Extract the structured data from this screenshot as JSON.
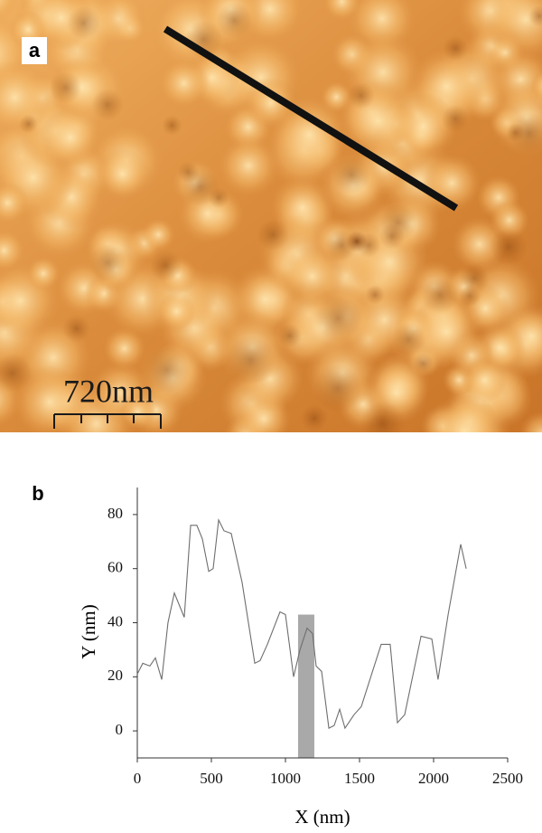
{
  "image_panel": {
    "label": "a",
    "scale_bar": "720nm"
  },
  "chart_data": {
    "type": "line",
    "panel_label": "b",
    "x_label": "X (nm)",
    "y_label": "Y (nm)",
    "x": [
      0,
      37,
      85,
      122,
      165,
      207,
      250,
      317,
      360,
      402,
      439,
      482,
      512,
      549,
      585,
      634,
      707,
      793,
      829,
      878,
      963,
      1000,
      1055,
      1098,
      1146,
      1183,
      1207,
      1244,
      1293,
      1329,
      1366,
      1402,
      1463,
      1512,
      1646,
      1707,
      1756,
      1805,
      1915,
      1988,
      2030,
      2098,
      2183,
      2220
    ],
    "series": [
      {
        "color": "#6e6e6e",
        "values": [
          21,
          25,
          24,
          27,
          19,
          40,
          51,
          42,
          76,
          76,
          71,
          59,
          60,
          78,
          74,
          73,
          55,
          25,
          26,
          32,
          44,
          43,
          20,
          30,
          38,
          36,
          24,
          22,
          1,
          2,
          8,
          1,
          6,
          9,
          32,
          32,
          3,
          6,
          35,
          34,
          19,
          43,
          69,
          60
        ]
      }
    ],
    "highlight": {
      "x": [
        1085,
        1195
      ],
      "top": 43,
      "color": "#a9a9a9"
    },
    "xlim": [
      0,
      2500
    ],
    "ylim": [
      -10,
      90
    ],
    "xticks": [
      0,
      500,
      1000,
      1500,
      2000,
      2500
    ],
    "yticks": [
      0,
      20,
      40,
      60,
      80
    ]
  }
}
